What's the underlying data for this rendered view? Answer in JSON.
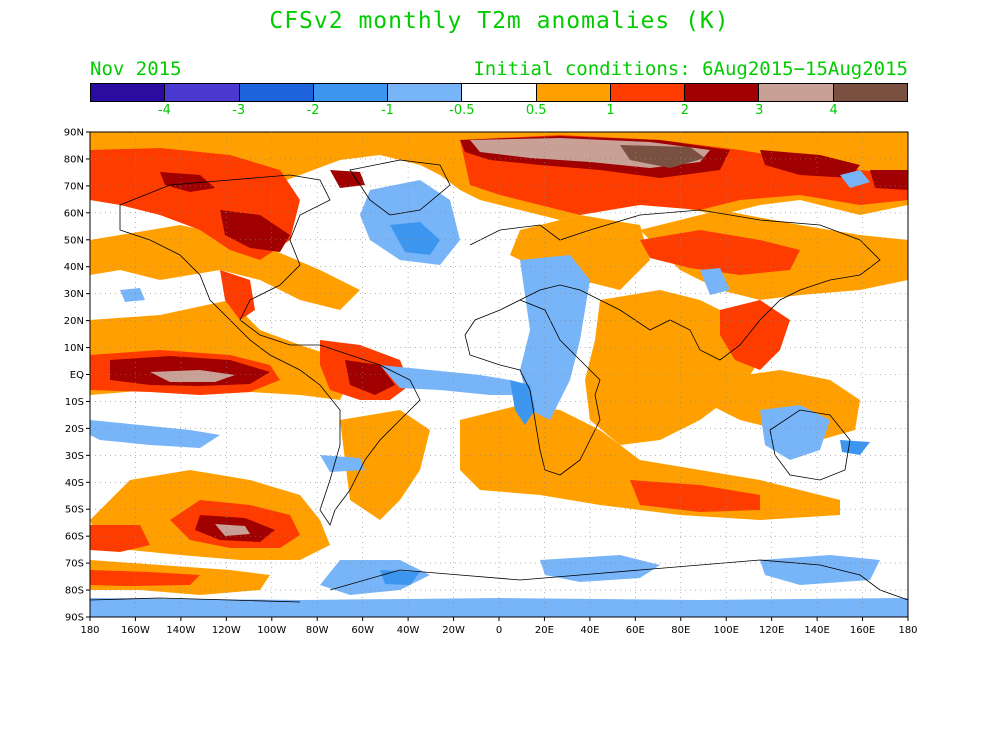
{
  "title": "CFSv2 monthly T2m anomalies (K)",
  "forecast_month": "Nov 2015",
  "initial_conditions": "Initial conditions: 6Aug2015−15Aug2015",
  "colors": {
    "text": "#00cc00",
    "palette": [
      "#2a0ca0",
      "#4a3ad0",
      "#1e64dc",
      "#3c96f0",
      "#78b4f8",
      "#ffffff",
      "#ffa000",
      "#ff3c00",
      "#a00000",
      "#c8a096",
      "#7a5040"
    ]
  },
  "colorbar": {
    "labels": [
      "-4",
      "-3",
      "-2",
      "-1",
      "-0.5",
      "0.5",
      "1",
      "2",
      "3",
      "4"
    ]
  },
  "axes": {
    "lat_labels": [
      "90N",
      "80N",
      "70N",
      "60N",
      "50N",
      "40N",
      "30N",
      "20N",
      "10N",
      "EQ",
      "10S",
      "20S",
      "30S",
      "40S",
      "50S",
      "60S",
      "70S",
      "80S",
      "90S"
    ],
    "lon_labels": [
      "180",
      "160W",
      "140W",
      "120W",
      "100W",
      "80W",
      "60W",
      "40W",
      "20W",
      "0",
      "20E",
      "40E",
      "60E",
      "80E",
      "100E",
      "120E",
      "140E",
      "160E",
      "180"
    ]
  }
}
